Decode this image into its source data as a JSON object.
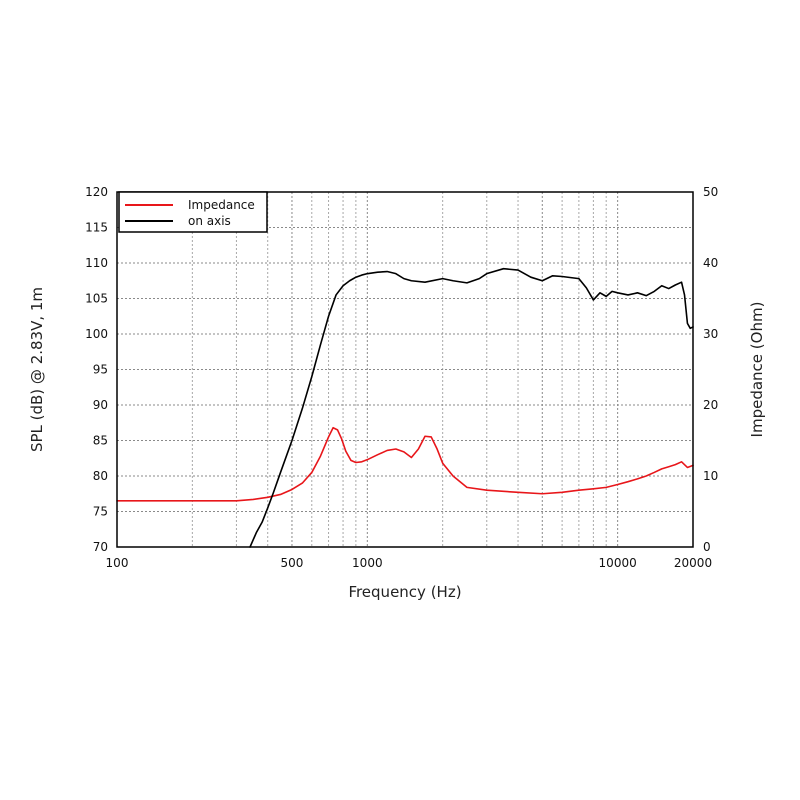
{
  "chart_data": {
    "type": "line",
    "xlabel": "Frequency (Hz)",
    "ylabel": "SPL (dB) @ 2.83V, 1m",
    "y2label": "Impedance (Ohm)",
    "x_scale": "log",
    "xlim": [
      100,
      20000
    ],
    "ylim": [
      70,
      120
    ],
    "y2lim": [
      0,
      50
    ],
    "grid": true,
    "legend_position": "top-left",
    "x_tick_labels": [
      {
        "value": 100,
        "label": "100"
      },
      {
        "value": 500,
        "label": "500"
      },
      {
        "value": 1000,
        "label": "1000"
      },
      {
        "value": 10000,
        "label": "10000"
      },
      {
        "value": 20000,
        "label": "20000"
      }
    ],
    "y_ticks": [
      70,
      75,
      80,
      85,
      90,
      95,
      100,
      105,
      110,
      115,
      120
    ],
    "y2_ticks": [
      0,
      10,
      20,
      30,
      40,
      50
    ],
    "series": [
      {
        "name": "Impedance",
        "axis": "right",
        "color": "#e8161a",
        "x": [
          100,
          200,
          300,
          350,
          400,
          450,
          500,
          550,
          600,
          650,
          700,
          730,
          760,
          790,
          820,
          860,
          900,
          950,
          1000,
          1100,
          1200,
          1300,
          1400,
          1500,
          1600,
          1700,
          1800,
          1900,
          2000,
          2200,
          2500,
          3000,
          4000,
          5000,
          6000,
          7000,
          8000,
          9000,
          10000,
          11000,
          12000,
          13000,
          14000,
          15000,
          16000,
          17000,
          18000,
          19000,
          20000
        ],
        "y": [
          6.5,
          6.5,
          6.5,
          6.7,
          7.0,
          7.4,
          8.1,
          9.0,
          10.5,
          12.8,
          15.5,
          16.8,
          16.5,
          15.2,
          13.5,
          12.2,
          11.9,
          12.0,
          12.3,
          13.0,
          13.6,
          13.8,
          13.4,
          12.6,
          13.8,
          15.6,
          15.5,
          13.8,
          11.8,
          10.0,
          8.4,
          8.0,
          7.7,
          7.5,
          7.7,
          8.0,
          8.2,
          8.4,
          8.8,
          9.2,
          9.6,
          10.0,
          10.5,
          11.0,
          11.3,
          11.6,
          12.0,
          11.2,
          11.5
        ]
      },
      {
        "name": "on axis",
        "axis": "left",
        "color": "#000000",
        "x": [
          340,
          360,
          380,
          400,
          420,
          450,
          500,
          550,
          600,
          650,
          700,
          750,
          800,
          850,
          900,
          950,
          1000,
          1100,
          1200,
          1300,
          1400,
          1500,
          1700,
          2000,
          2200,
          2500,
          2800,
          3000,
          3500,
          4000,
          4500,
          5000,
          5500,
          6000,
          7000,
          7500,
          8000,
          8500,
          9000,
          9500,
          10000,
          11000,
          12000,
          13000,
          14000,
          15000,
          16000,
          17000,
          18000,
          18500,
          19000,
          19500,
          20000
        ],
        "y": [
          70.0,
          72.0,
          73.5,
          75.5,
          77.5,
          80.5,
          85.0,
          89.5,
          94.0,
          98.5,
          102.5,
          105.5,
          106.8,
          107.5,
          108.0,
          108.3,
          108.5,
          108.7,
          108.8,
          108.5,
          107.8,
          107.5,
          107.3,
          107.8,
          107.5,
          107.2,
          107.8,
          108.5,
          109.2,
          109.0,
          108.0,
          107.5,
          108.2,
          108.1,
          107.8,
          106.5,
          104.8,
          105.8,
          105.3,
          106.0,
          105.8,
          105.5,
          105.8,
          105.4,
          106.0,
          106.8,
          106.4,
          106.9,
          107.3,
          105.5,
          101.5,
          100.8,
          101.0
        ]
      }
    ]
  }
}
